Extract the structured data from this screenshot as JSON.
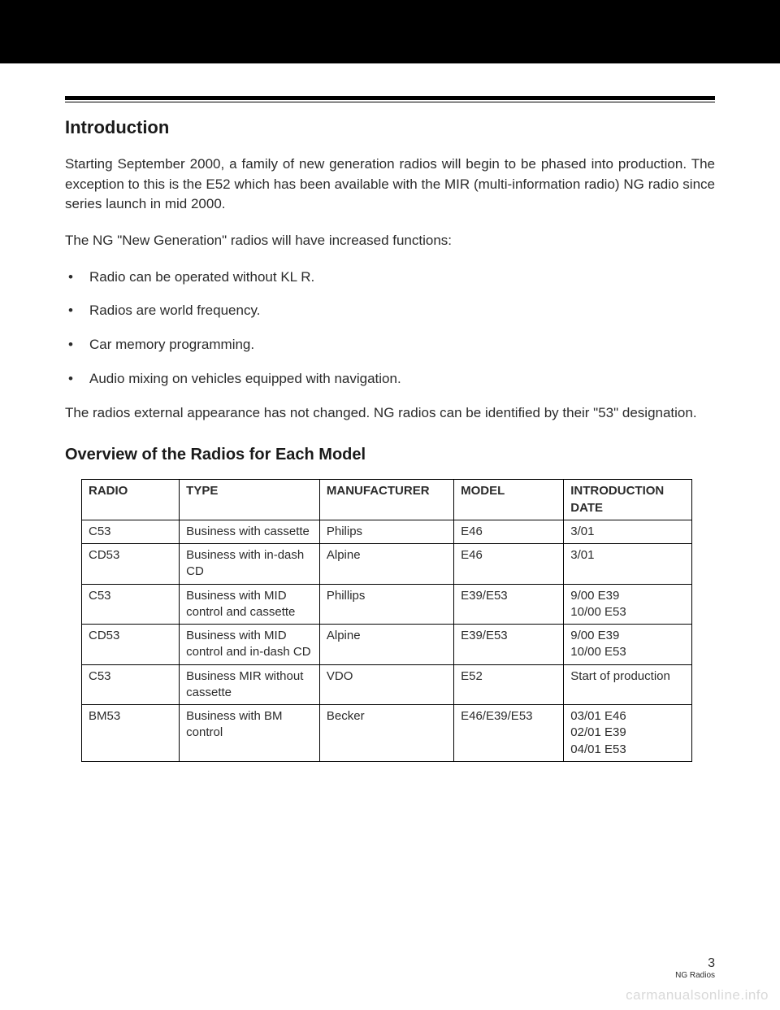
{
  "header": {
    "title": "Introduction"
  },
  "intro": {
    "p1": "Starting September 2000, a family of new generation radios will begin to be phased into production.  The exception to this is the E52 which has been available with the MIR (multi-information radio) NG radio since series launch in mid 2000.",
    "p2": "The NG \"New Generation\" radios will have increased functions:",
    "bullets": [
      "Radio can be operated without KL R.",
      "Radios are world frequency.",
      "Car memory programming.",
      "Audio mixing on vehicles equipped with navigation."
    ],
    "p3": "The radios external appearance has not changed.  NG radios can be identified by their \"53\" designation."
  },
  "overview": {
    "title": "Overview of the Radios for Each Model",
    "columns": [
      "RADIO",
      "TYPE",
      "MANUFACTURER",
      "MODEL",
      "INTRODUCTION DATE"
    ],
    "rows": [
      [
        "C53",
        "Business with cassette",
        "Philips",
        "E46",
        "3/01"
      ],
      [
        "CD53",
        "Business with in-dash CD",
        "Alpine",
        "E46",
        "3/01"
      ],
      [
        "C53",
        "Business with MID control and cassette",
        "Phillips",
        "E39/E53",
        "9/00 E39\n10/00 E53"
      ],
      [
        "CD53",
        "Business with MID control and in-dash CD",
        "Alpine",
        "E39/E53",
        "9/00 E39\n10/00 E53"
      ],
      [
        "C53",
        "Business MIR without cassette",
        "VDO",
        "E52",
        "Start of production"
      ],
      [
        "BM53",
        "Business with BM control",
        "Becker",
        "E46/E39/E53",
        "03/01 E46\n02/01 E39\n04/01 E53"
      ]
    ]
  },
  "footer": {
    "page": "3",
    "doc": "NG Radios"
  },
  "watermark": "carmanualsonline.info"
}
